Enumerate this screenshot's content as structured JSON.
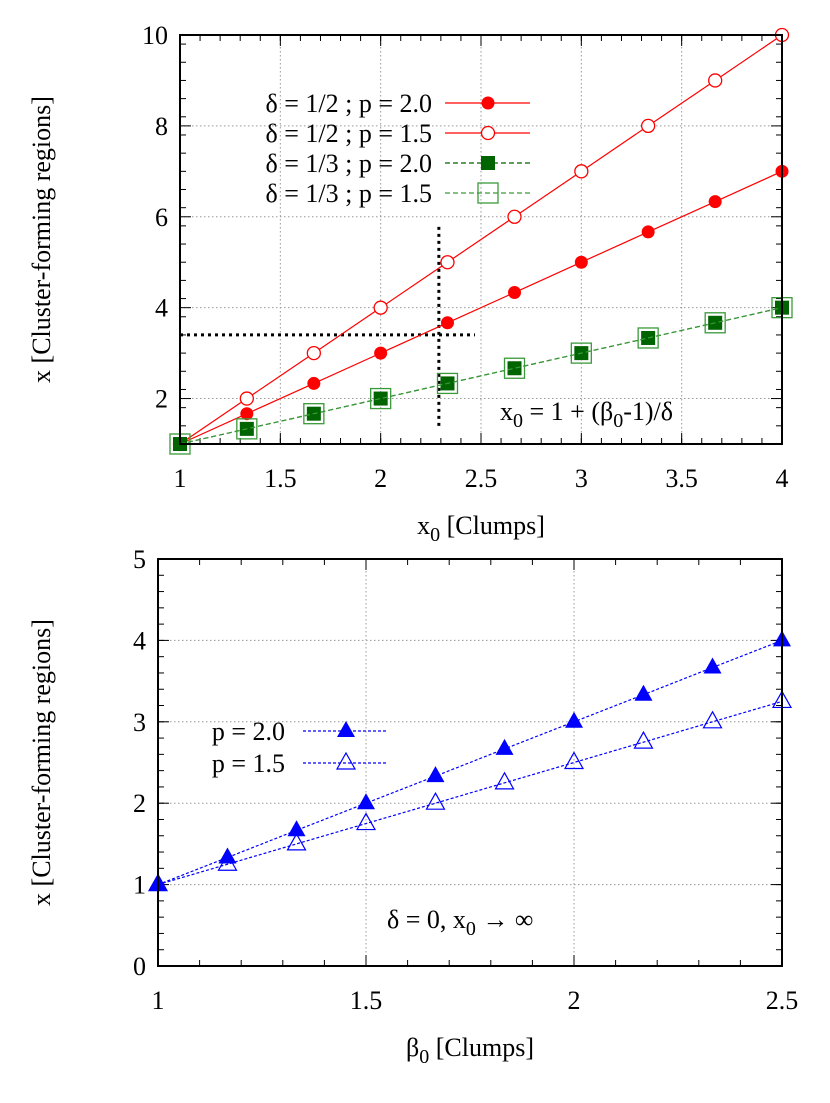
{
  "chart_data": [
    {
      "type": "line",
      "xlabel": "x0 [Clumps]",
      "xlabel_main": "x",
      "xlabel_sub": "0",
      "xlabel_rest": " [Clumps]",
      "ylabel": "x [Cluster-forming regions]",
      "xlim": [
        1,
        4
      ],
      "ylim": [
        1,
        10
      ],
      "xticks": [
        1,
        1.5,
        2,
        2.5,
        3,
        3.5,
        4
      ],
      "yticks": [
        2,
        4,
        6,
        8,
        10
      ],
      "grid": true,
      "legend_position": "top-left",
      "annotation": "x0 = 1 + (β0-1)/δ",
      "annotation_parts": [
        "x",
        "0",
        " = 1 + (β",
        "0",
        "-1)/δ"
      ],
      "reference_lines": [
        {
          "orientation": "vertical",
          "x": 2.29,
          "y_range": [
            1.4,
            5.8
          ]
        },
        {
          "orientation": "horizontal",
          "y": 3.4,
          "x_range": [
            1,
            2.47
          ]
        }
      ],
      "x": [
        1,
        1.333,
        1.667,
        2,
        2.333,
        2.667,
        3,
        3.333,
        3.667,
        4
      ],
      "series": [
        {
          "name": "δ = 1/2 ; p = 2.0",
          "color": "#ff0000",
          "marker": "filled-circle",
          "line": "solid",
          "values": [
            1,
            1.667,
            2.333,
            3,
            3.667,
            4.333,
            5,
            5.667,
            6.333,
            7
          ]
        },
        {
          "name": "δ = 1/2 ; p = 1.5",
          "color": "#ff0000",
          "marker": "open-circle",
          "line": "solid",
          "values": [
            1,
            2,
            3,
            4,
            5,
            6,
            7,
            8,
            9,
            10
          ]
        },
        {
          "name": "δ = 1/3 ; p = 2.0",
          "color": "#006400",
          "marker": "filled-square",
          "line": "dashed",
          "values": [
            1,
            1.333,
            1.667,
            2,
            2.333,
            2.667,
            3,
            3.333,
            3.667,
            4
          ]
        },
        {
          "name": "δ = 1/3 ; p = 1.5",
          "color": "#3a9a3a",
          "marker": "open-square",
          "line": "dashed",
          "values": [
            1,
            1.333,
            1.667,
            2,
            2.333,
            2.667,
            3,
            3.333,
            3.667,
            4
          ]
        }
      ]
    },
    {
      "type": "line",
      "xlabel": "β0 [Clumps]",
      "xlabel_main": "β",
      "xlabel_sub": "0",
      "xlabel_rest": " [Clumps]",
      "ylabel": "x [Cluster-forming regions]",
      "xlim": [
        1,
        2.5
      ],
      "ylim": [
        0,
        5
      ],
      "xticks": [
        1,
        1.5,
        2,
        2.5
      ],
      "yticks": [
        0,
        1,
        2,
        3,
        4,
        5
      ],
      "grid": true,
      "legend_position": "top-left",
      "annotation": "δ = 0, x0 → ∞",
      "annotation_parts": [
        "δ = 0, x",
        "0",
        " → ∞"
      ],
      "x": [
        1,
        1.167,
        1.333,
        1.5,
        1.667,
        1.833,
        2,
        2.167,
        2.333,
        2.5
      ],
      "series": [
        {
          "name": "p = 2.0",
          "color": "#0000ff",
          "marker": "filled-triangle",
          "line": "dotted",
          "values": [
            1,
            1.333,
            1.667,
            2,
            2.333,
            2.667,
            3,
            3.333,
            3.667,
            4
          ]
        },
        {
          "name": "p = 1.5",
          "color": "#0000ff",
          "marker": "open-triangle",
          "line": "dotted",
          "values": [
            1,
            1.25,
            1.5,
            1.75,
            2,
            2.25,
            2.5,
            2.75,
            3,
            3.25
          ]
        }
      ]
    }
  ]
}
